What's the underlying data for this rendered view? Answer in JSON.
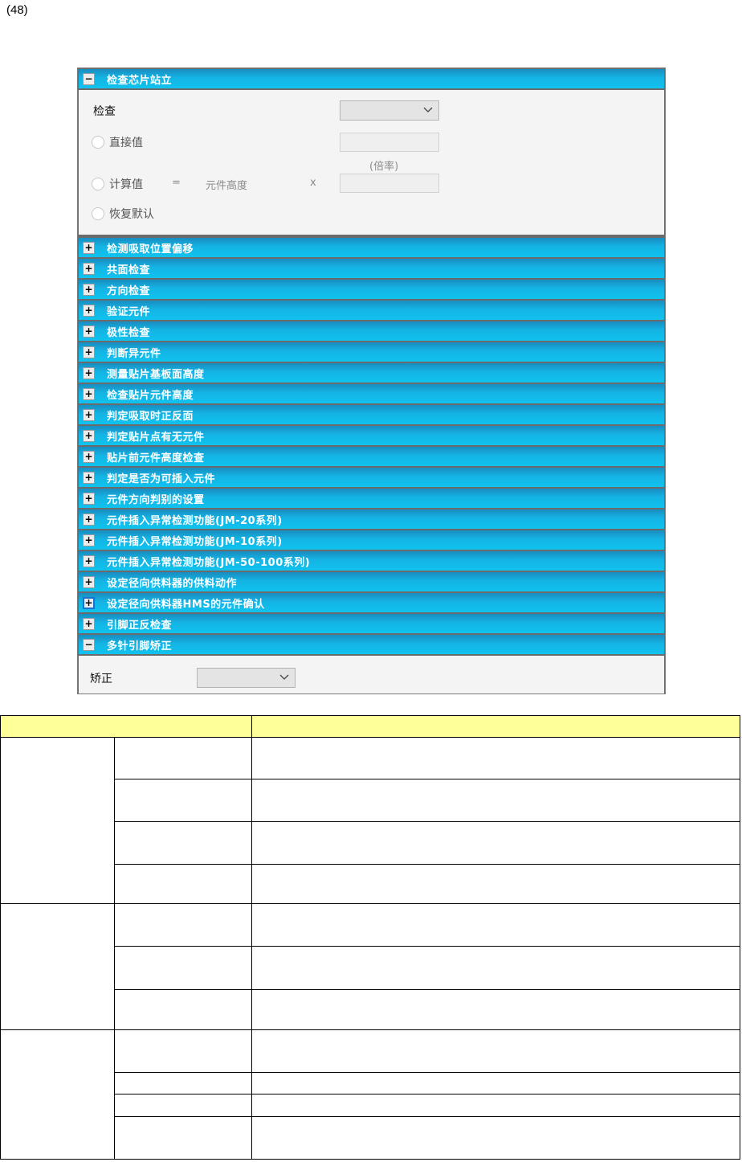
{
  "page_number": "(48)",
  "panel": {
    "expanded_section": {
      "title": "检查芯片站立",
      "toggle": "−",
      "check_label": "检查",
      "check_select_value": "",
      "direct_value_label": "直接值",
      "direct_value_input": "",
      "ratio_label": "(倍率)",
      "calc_value_label": "计算值",
      "equals": "=",
      "component_height_label": "元件高度",
      "times": "x",
      "calc_value_input": "",
      "restore_default_label": "恢复默认"
    },
    "collapsed_sections": [
      "检测吸取位置偏移",
      "共面检查",
      "方向检查",
      "验证元件",
      "极性检查",
      "判断异元件",
      "测量贴片基板面高度",
      "检查贴片元件高度",
      "判定吸取时正反面",
      "判定贴片点有无元件",
      "贴片前元件高度检查",
      "判定是否为可插入元件",
      "元件方向判别的设置",
      "元件插入异常检测功能(JM-20系列)",
      "元件插入异常检测功能(JM-10系列)",
      "元件插入异常检测功能(JM-50-100系列)",
      "设定径向供料器的供料动作",
      "设定径向供料器HMS的元件确认",
      "引脚正反检查"
    ],
    "collapsed_toggle": "+",
    "last_section": {
      "title": "多针引脚矫正",
      "toggle": "−",
      "correct_label": "矫正",
      "correct_select_value": ""
    }
  },
  "colors": {
    "header_blue": "#14b4e4",
    "table_header_yellow": "#ffff99",
    "panel_bg": "#f4f4f4"
  }
}
